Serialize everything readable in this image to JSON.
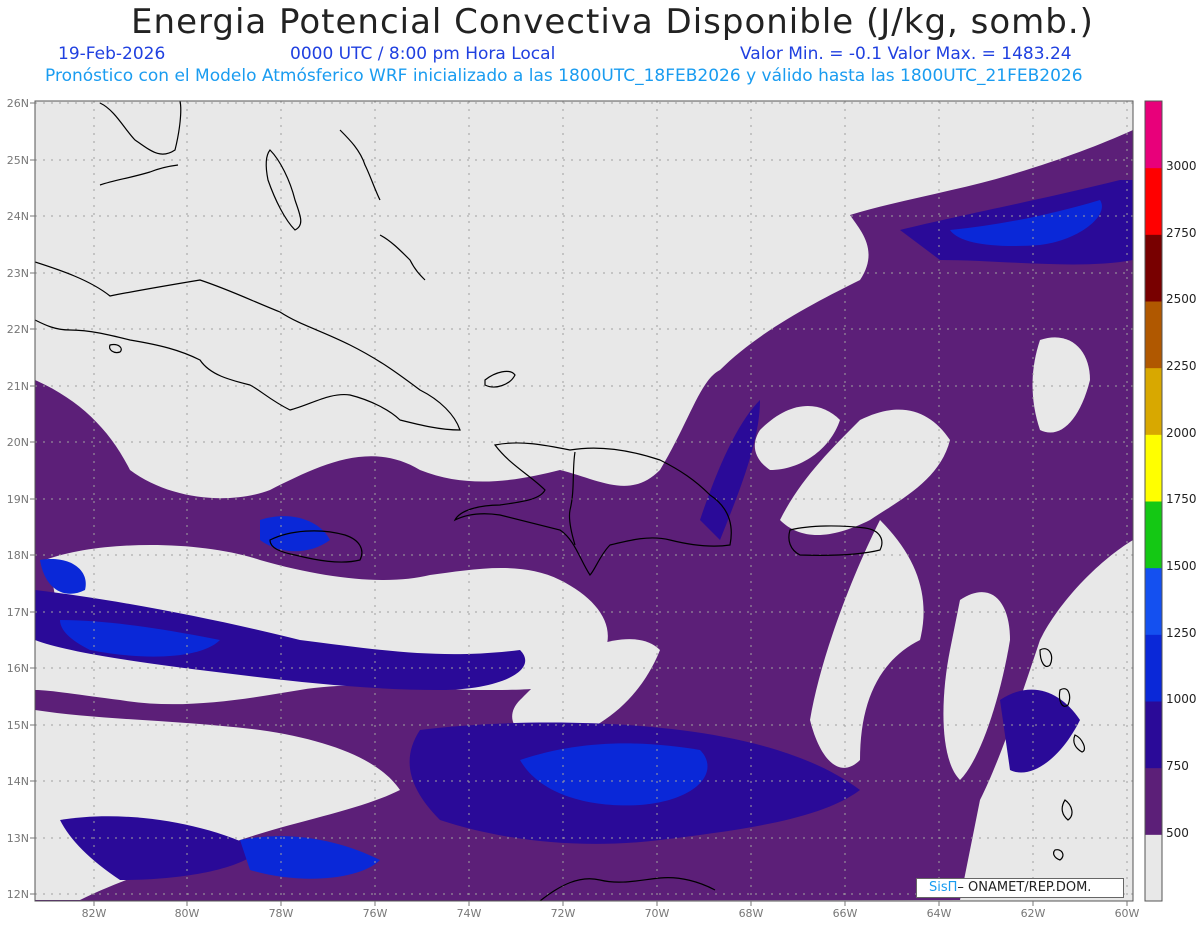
{
  "header": {
    "title": "Energia Potencial Convectiva Disponible (J/kg, somb.)",
    "date": "19-Feb-2026",
    "time_info": "0000 UTC / 8:00 pm Hora Local",
    "min_max": "Valor Min. = -0.1  Valor Max. = 1483.24",
    "model_info": "Pronóstico con el Modelo Atmósferico WRF inicializado a las 1800UTC_18FEB2026 y válido hasta las  1800UTC_21FEB2026"
  },
  "map": {
    "lat_labels": [
      "26N",
      "25N",
      "24N",
      "23N",
      "22N",
      "21N",
      "20N",
      "19N",
      "18N",
      "17N",
      "16N",
      "15N",
      "14N",
      "13N",
      "12N"
    ],
    "lon_labels": [
      "82W",
      "80W",
      "78W",
      "76W",
      "74W",
      "72W",
      "70W",
      "68W",
      "66W",
      "64W",
      "62W",
      "60W"
    ],
    "background_color": "#e8e8e8",
    "land_outline_color": "#000000"
  },
  "colorbar": {
    "labels": [
      "3000",
      "2750",
      "2500",
      "2250",
      "2000",
      "1750",
      "1500",
      "1250",
      "1000",
      "750",
      "500"
    ],
    "colors": [
      "#e8e8e8",
      "#5c1f78",
      "#2a0a98",
      "#0a28d8",
      "#1450f0",
      "#14c814",
      "#ffff00",
      "#d8a800",
      "#b05800",
      "#780000",
      "#ff0000",
      "#e8007a"
    ]
  },
  "credit": {
    "brand": "SisΠ",
    "org": "– ONAMET/REP.DOM."
  }
}
